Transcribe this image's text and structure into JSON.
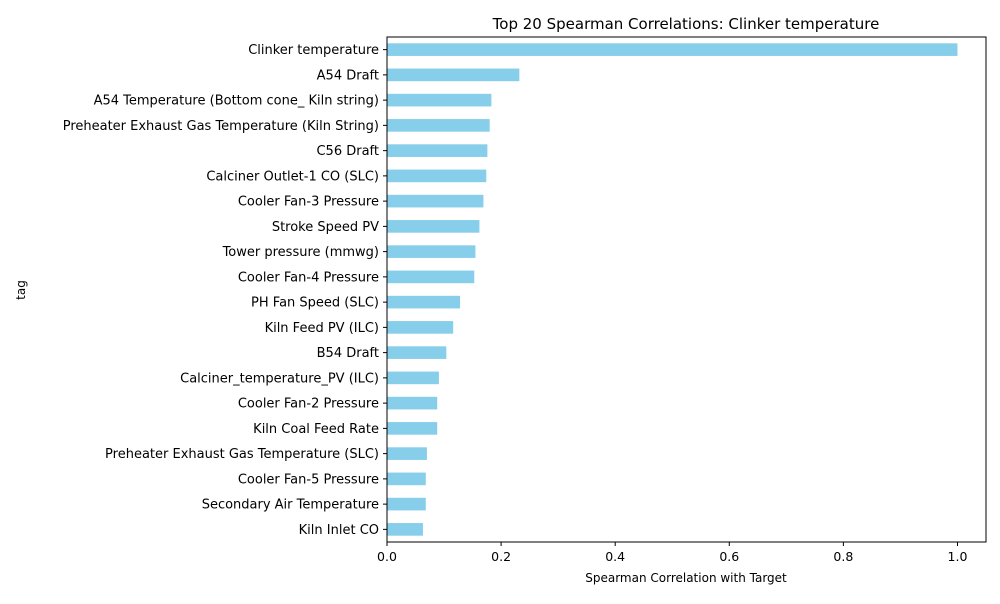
{
  "chart_data": {
    "type": "bar",
    "orientation": "horizontal",
    "title": "Top 20 Spearman Correlations: Clinker temperature",
    "xlabel": "Spearman Correlation with Target",
    "ylabel": "tag",
    "xlim": [
      0,
      1.05
    ],
    "xticks": [
      "0.0",
      "0.2",
      "0.4",
      "0.6",
      "0.8",
      "1.0"
    ],
    "grid": false,
    "legend": "none",
    "bar_color": "#87ceeb",
    "categories": [
      "Clinker temperature",
      "A54 Draft",
      "A54 Temperature (Bottom cone_ Kiln string)",
      "Preheater Exhaust Gas Temperature  (Kiln String)",
      "C56 Draft",
      "Calciner Outlet-1 CO (SLC)",
      "Cooler Fan-3 Pressure",
      "Stroke Speed PV",
      "Tower pressure (mmwg)",
      "Cooler Fan-4 Pressure",
      "PH Fan Speed (SLC)",
      "Kiln Feed PV (ILC)",
      "B54 Draft",
      "Calciner_temperature_PV (ILC)",
      "Cooler Fan-2 Pressure",
      "Kiln Coal Feed Rate",
      "Preheater Exhaust Gas Temperature (SLC)",
      "Cooler Fan-5 Pressure",
      "Secondary Air Temperature",
      "Kiln Inlet CO"
    ],
    "values": [
      1.0,
      0.232,
      0.183,
      0.18,
      0.176,
      0.174,
      0.169,
      0.162,
      0.155,
      0.153,
      0.128,
      0.116,
      0.104,
      0.091,
      0.088,
      0.088,
      0.07,
      0.068,
      0.068,
      0.063
    ]
  }
}
